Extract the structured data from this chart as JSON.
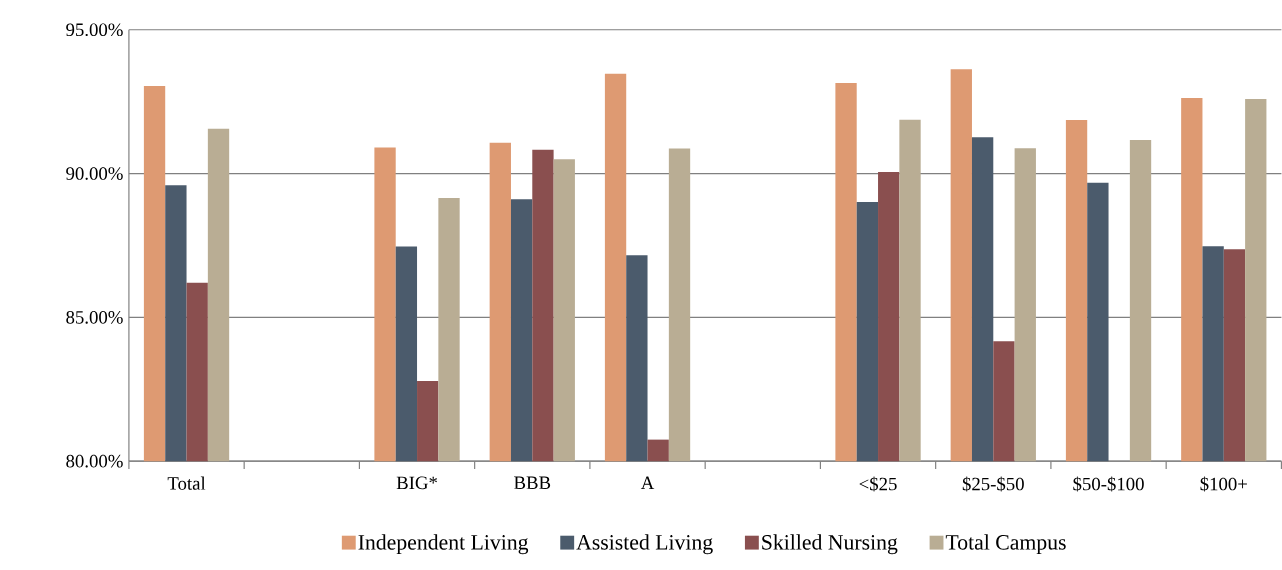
{
  "chart_data": {
    "type": "bar",
    "categories": [
      "Total",
      null,
      "BIG*",
      "BBB",
      "A",
      null,
      "<$25",
      "$25-$50",
      "$50-$100",
      "$100+"
    ],
    "series": [
      {
        "name": "Independent Living",
        "color": "#de9a72",
        "values": [
          93.04,
          null,
          90.91,
          91.07,
          93.47,
          null,
          93.15,
          93.63,
          91.86,
          92.63
        ]
      },
      {
        "name": "Assisted Living",
        "color": "#4b5b6c",
        "values": [
          89.59,
          null,
          87.46,
          89.11,
          87.16,
          null,
          89.01,
          91.26,
          89.68,
          87.47
        ]
      },
      {
        "name": "Skilled Nursing",
        "color": "#8a4f4f",
        "values": [
          86.2,
          null,
          82.79,
          90.83,
          80.75,
          null,
          90.05,
          84.17,
          80.0,
          87.37
        ]
      },
      {
        "name": "Total Campus",
        "color": "#b9ad94",
        "values": [
          91.56,
          null,
          89.15,
          90.5,
          90.87,
          null,
          91.87,
          90.88,
          91.17,
          92.59
        ]
      }
    ],
    "ylim": [
      80,
      95
    ],
    "yticks": [
      {
        "value": 80,
        "label": "80.00%"
      },
      {
        "value": 85,
        "label": "85.00%"
      },
      {
        "value": 90,
        "label": "90.00%"
      },
      {
        "value": 95,
        "label": "95.00%"
      }
    ],
    "grid": "y",
    "legend": "bottom"
  }
}
